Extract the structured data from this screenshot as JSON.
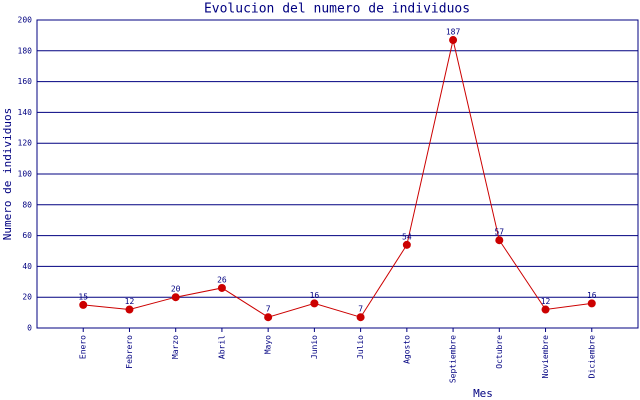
{
  "chart_data": {
    "type": "line",
    "title": "Evolucion del numero de individuos",
    "x_label": "Mes",
    "y_label": "Numero de individuos",
    "categories": [
      "Enero",
      "Febrero",
      "Marzo",
      "Abril",
      "Mayo",
      "Junio",
      "Julio",
      "Agosto",
      "Septiembre",
      "Octubre",
      "Noviembre",
      "Diciembre"
    ],
    "values": [
      15,
      12,
      20,
      26,
      7,
      16,
      7,
      54,
      187,
      57,
      12,
      16
    ],
    "color": "#cc0000",
    "ylim": [
      0,
      200
    ],
    "yticks": [
      0,
      20,
      40,
      60,
      80,
      100,
      120,
      140,
      160,
      180,
      200
    ],
    "grid": true
  }
}
